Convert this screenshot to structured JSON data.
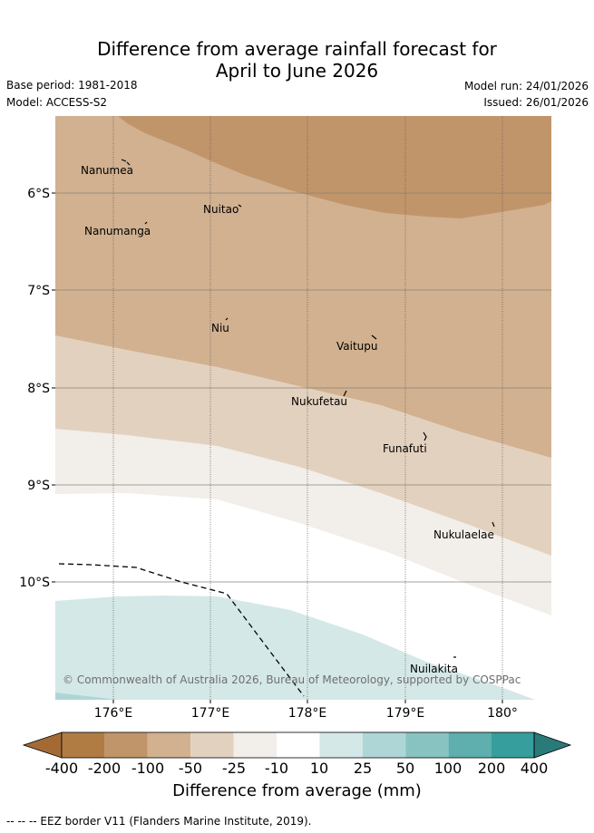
{
  "title_line1": "Difference from average rainfall forecast for",
  "title_line2": "April to June 2026",
  "base_period": "Base period: 1981-2018",
  "model": "Model: ACCESS-S2",
  "model_run": "Model run: 24/01/2026",
  "issued": "Issued: 26/01/2026",
  "copyright": "© Commonwealth of Australia 2026, Bureau of Meteorology, supported by COSPPac",
  "lat_labels": [
    "6°S",
    "7°S",
    "8°S",
    "9°S",
    "10°S"
  ],
  "lon_labels": [
    "176°E",
    "177°E",
    "178°E",
    "179°E",
    "180°"
  ],
  "islands": [
    "Nanumea",
    "Nuitao",
    "Nanumanga",
    "Niu",
    "Vaitupu",
    "Nukufetau",
    "Funafuti",
    "Nukulaelae",
    "Nuilakita"
  ],
  "colorbar": {
    "ticks": [
      "-400",
      "-200",
      "-100",
      "-50",
      "-25",
      "-10",
      "10",
      "25",
      "50",
      "100",
      "200",
      "400"
    ],
    "colors": [
      "#a46a36",
      "#b07c44",
      "#c1956a",
      "#d1b190",
      "#e3d1bf",
      "#f2eee9",
      "#ffffff",
      "#d4e8e7",
      "#afd6d6",
      "#88c3c2",
      "#5eafae",
      "#369e9d",
      "#297a79"
    ],
    "title": "Difference from average (mm)"
  },
  "footer": "--  --  -- EEZ border V11 (Flanders Marine Institute, 2019)."
}
